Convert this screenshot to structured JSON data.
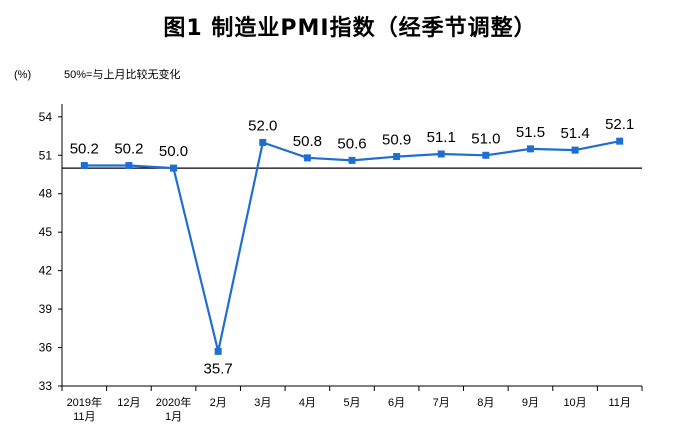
{
  "chart_data": {
    "type": "line",
    "title": "图1  制造业PMI指数（经季节调整）",
    "unit": "(%)",
    "note": "50%=与上月比较无变化",
    "series_color": "#1f6fd1",
    "reference_value": 50,
    "ylim": [
      33,
      55
    ],
    "yticks": [
      "33",
      "36",
      "39",
      "42",
      "45",
      "48",
      "51",
      "54"
    ],
    "grid": false,
    "legend": "none",
    "categories": [
      [
        "2019年",
        "11月"
      ],
      [
        "12月"
      ],
      [
        "2020年",
        "1月"
      ],
      [
        "2月"
      ],
      [
        "3月"
      ],
      [
        "4月"
      ],
      [
        "5月"
      ],
      [
        "6月"
      ],
      [
        "7月"
      ],
      [
        "8月"
      ],
      [
        "9月"
      ],
      [
        "10月"
      ],
      [
        "11月"
      ]
    ],
    "values": [
      50.2,
      50.2,
      50.0,
      35.7,
      52.0,
      50.8,
      50.6,
      50.9,
      51.1,
      51.0,
      51.5,
      51.4,
      52.1
    ],
    "data_labels": [
      "50.2",
      "50.2",
      "50.0",
      "35.7",
      "52.0",
      "50.8",
      "50.6",
      "50.9",
      "51.1",
      "51.0",
      "51.5",
      "51.4",
      "52.1"
    ]
  }
}
